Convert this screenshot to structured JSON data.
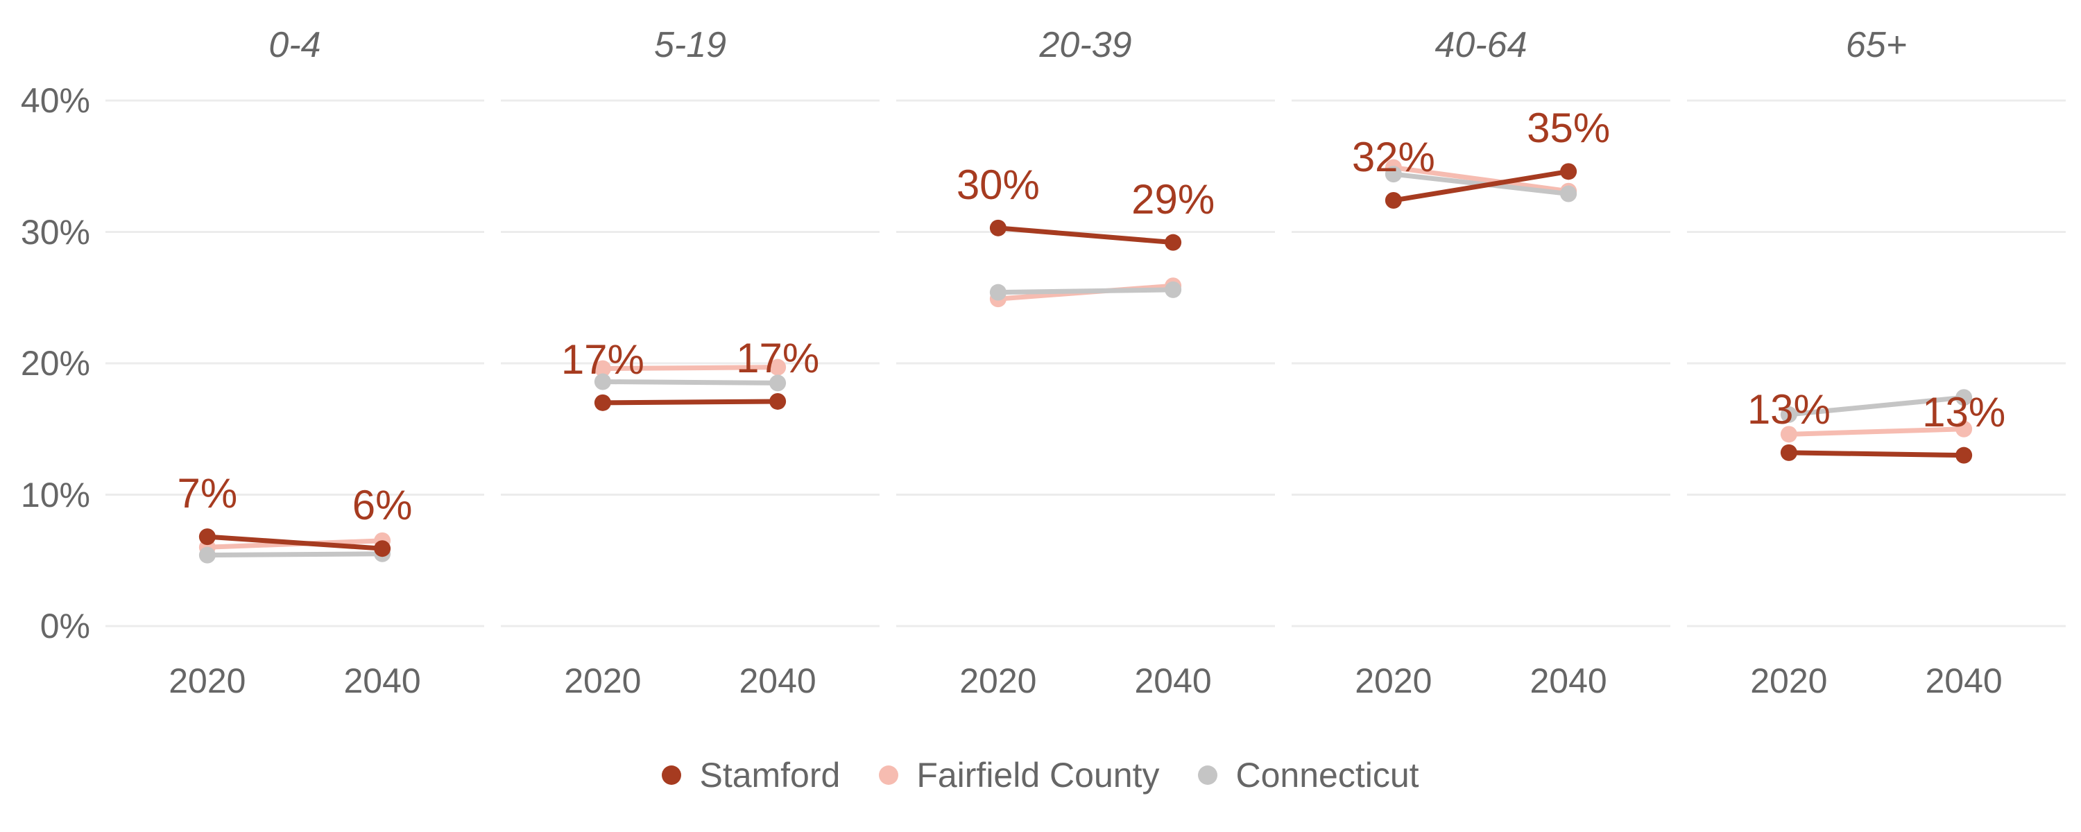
{
  "chart_data": {
    "type": "line",
    "title": "",
    "xlabel": "",
    "ylabel": "",
    "grid": true,
    "legend_position": "bottom",
    "categories": [
      "2020",
      "2040"
    ],
    "y_ticks": [
      "0%",
      "10%",
      "20%",
      "30%",
      "40%"
    ],
    "ylim": [
      0,
      40
    ],
    "point_label_series": "Stamford",
    "series_meta": [
      {
        "name": "Stamford",
        "color": "#a63b20"
      },
      {
        "name": "Fairfield County",
        "color": "#f6bcb1"
      },
      {
        "name": "Connecticut",
        "color": "#c5c5c5"
      }
    ],
    "facets": [
      {
        "label": "0-4",
        "point_labels": [
          "7%",
          "6%"
        ],
        "series": [
          {
            "name": "Stamford",
            "values": [
              6.8,
              5.9
            ]
          },
          {
            "name": "Fairfield County",
            "values": [
              6.0,
              6.5
            ]
          },
          {
            "name": "Connecticut",
            "values": [
              5.4,
              5.5
            ]
          }
        ]
      },
      {
        "label": "5-19",
        "point_labels": [
          "17%",
          "17%"
        ],
        "series": [
          {
            "name": "Stamford",
            "values": [
              17.0,
              17.1
            ]
          },
          {
            "name": "Fairfield County",
            "values": [
              19.6,
              19.7
            ]
          },
          {
            "name": "Connecticut",
            "values": [
              18.6,
              18.5
            ]
          }
        ]
      },
      {
        "label": "20-39",
        "point_labels": [
          "30%",
          "29%"
        ],
        "series": [
          {
            "name": "Stamford",
            "values": [
              30.3,
              29.2
            ]
          },
          {
            "name": "Fairfield County",
            "values": [
              24.9,
              25.9
            ]
          },
          {
            "name": "Connecticut",
            "values": [
              25.4,
              25.6
            ]
          }
        ]
      },
      {
        "label": "40-64",
        "point_labels": [
          "32%",
          "35%"
        ],
        "series": [
          {
            "name": "Stamford",
            "values": [
              32.4,
              34.6
            ]
          },
          {
            "name": "Fairfield County",
            "values": [
              34.9,
              33.1
            ]
          },
          {
            "name": "Connecticut",
            "values": [
              34.4,
              32.9
            ]
          }
        ]
      },
      {
        "label": "65+",
        "point_labels": [
          "13%",
          "13%"
        ],
        "series": [
          {
            "name": "Stamford",
            "values": [
              13.2,
              13.0
            ]
          },
          {
            "name": "Fairfield County",
            "values": [
              14.6,
              15.0
            ]
          },
          {
            "name": "Connecticut",
            "values": [
              16.1,
              17.4
            ]
          }
        ]
      }
    ],
    "grid_color": "#ececec",
    "text_color": "#666666"
  }
}
